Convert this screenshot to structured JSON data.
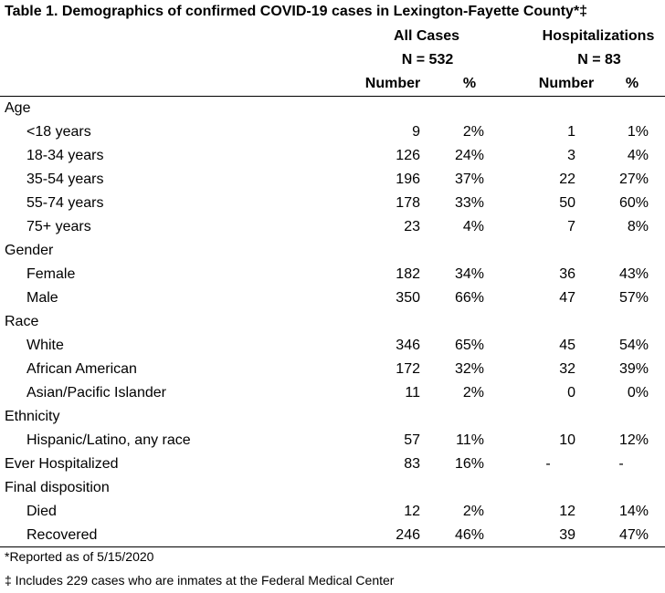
{
  "table": {
    "title": "Table 1. Demographics of confirmed COVID-19 cases in Lexington-Fayette County*‡",
    "groups": [
      {
        "name": "All Cases",
        "n": "N = 532"
      },
      {
        "name": "Hospitalizations",
        "n": "N = 83"
      }
    ],
    "columns": [
      "Number",
      "%",
      "Number",
      "%"
    ],
    "rows": [
      {
        "label": "Age",
        "indent": false,
        "values": [
          "",
          "",
          "",
          ""
        ]
      },
      {
        "label": "<18 years",
        "indent": true,
        "values": [
          "9",
          "2%",
          "1",
          "1%"
        ]
      },
      {
        "label": "18-34 years",
        "indent": true,
        "values": [
          "126",
          "24%",
          "3",
          "4%"
        ]
      },
      {
        "label": "35-54 years",
        "indent": true,
        "values": [
          "196",
          "37%",
          "22",
          "27%"
        ]
      },
      {
        "label": "55-74 years",
        "indent": true,
        "values": [
          "178",
          "33%",
          "50",
          "60%"
        ]
      },
      {
        "label": "75+ years",
        "indent": true,
        "values": [
          "23",
          "4%",
          "7",
          "8%"
        ]
      },
      {
        "label": "Gender",
        "indent": false,
        "values": [
          "",
          "",
          "",
          ""
        ]
      },
      {
        "label": "Female",
        "indent": true,
        "values": [
          "182",
          "34%",
          "36",
          "43%"
        ]
      },
      {
        "label": "Male",
        "indent": true,
        "values": [
          "350",
          "66%",
          "47",
          "57%"
        ]
      },
      {
        "label": "Race",
        "indent": false,
        "values": [
          "",
          "",
          "",
          ""
        ]
      },
      {
        "label": "White",
        "indent": true,
        "values": [
          "346",
          "65%",
          "45",
          "54%"
        ]
      },
      {
        "label": "African American",
        "indent": true,
        "values": [
          "172",
          "32%",
          "32",
          "39%"
        ]
      },
      {
        "label": "Asian/Pacific Islander",
        "indent": true,
        "values": [
          "11",
          "2%",
          "0",
          "0%"
        ]
      },
      {
        "label": "Ethnicity",
        "indent": false,
        "values": [
          "",
          "",
          "",
          ""
        ]
      },
      {
        "label": "Hispanic/Latino, any race",
        "indent": true,
        "values": [
          "57",
          "11%",
          "10",
          "12%"
        ]
      },
      {
        "label": "Ever Hospitalized",
        "indent": false,
        "values": [
          "83",
          "16%",
          "-",
          "-"
        ]
      },
      {
        "label": "Final disposition",
        "indent": false,
        "values": [
          "",
          "",
          "",
          ""
        ]
      },
      {
        "label": "Died",
        "indent": true,
        "values": [
          "12",
          "2%",
          "12",
          "14%"
        ]
      },
      {
        "label": "Recovered",
        "indent": true,
        "values": [
          "246",
          "46%",
          "39",
          "47%"
        ]
      }
    ]
  },
  "footnotes": [
    "*Reported as of 5/15/2020",
    "‡ Includes 229 cases who are inmates at the Federal Medical Center"
  ]
}
